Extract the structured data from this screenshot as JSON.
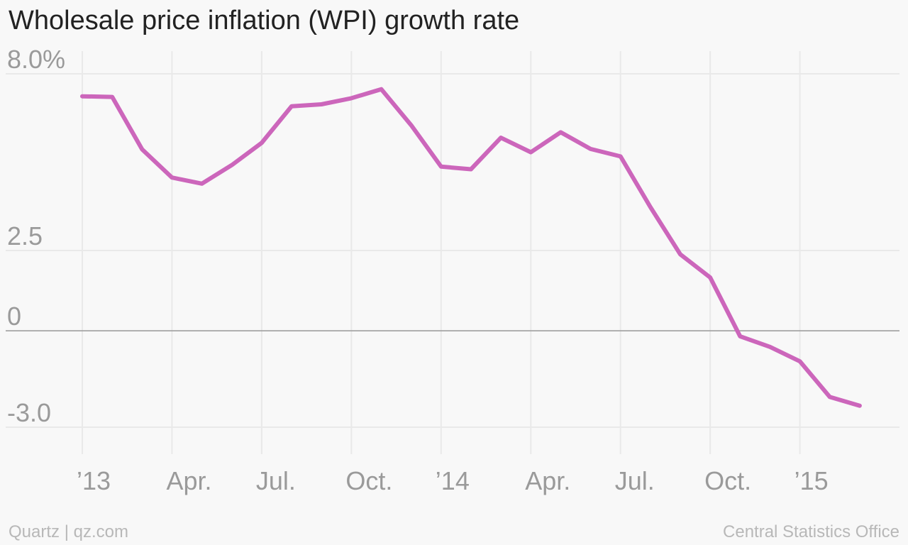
{
  "title": "Wholesale price inflation (WPI) growth rate",
  "footer": {
    "left": "Quartz | qz.com",
    "right": "Central Statistics Office"
  },
  "colors": {
    "line": "#cc66bb",
    "grid": "#e9e9e9",
    "zero_line": "#999999",
    "background": "#f8f8f8"
  },
  "chart_data": {
    "type": "line",
    "title": "Wholesale price inflation (WPI) growth rate",
    "xlabel": "",
    "ylabel": "",
    "ylim": [
      -3.0,
      8.0
    ],
    "grid": true,
    "y_ticks": [
      {
        "value": 8.0,
        "label": "8.0%"
      },
      {
        "value": 2.5,
        "label": "2.5"
      },
      {
        "value": 0,
        "label": "0"
      },
      {
        "value": -3.0,
        "label": "-3.0"
      }
    ],
    "x_ticks": [
      {
        "month": "2013-01",
        "label": "’13"
      },
      {
        "month": "2013-04",
        "label": "Apr."
      },
      {
        "month": "2013-07",
        "label": "Jul."
      },
      {
        "month": "2013-10",
        "label": "Oct."
      },
      {
        "month": "2014-01",
        "label": "’14"
      },
      {
        "month": "2014-04",
        "label": "Apr."
      },
      {
        "month": "2014-07",
        "label": "Jul."
      },
      {
        "month": "2014-10",
        "label": "Oct."
      },
      {
        "month": "2015-01",
        "label": "’15"
      }
    ],
    "x": [
      "2013-01",
      "2013-02",
      "2013-03",
      "2013-04",
      "2013-05",
      "2013-06",
      "2013-07",
      "2013-08",
      "2013-09",
      "2013-10",
      "2013-11",
      "2013-12",
      "2014-01",
      "2014-02",
      "2014-03",
      "2014-04",
      "2014-05",
      "2014-06",
      "2014-07",
      "2014-08",
      "2014-09",
      "2014-10",
      "2014-11",
      "2014-12",
      "2015-01",
      "2015-02",
      "2015-03"
    ],
    "series": [
      {
        "values": [
          7.3,
          7.28,
          5.65,
          4.77,
          4.58,
          5.16,
          5.85,
          6.99,
          7.05,
          7.24,
          7.52,
          6.4,
          5.11,
          5.03,
          6.01,
          5.56,
          6.18,
          5.66,
          5.43,
          3.85,
          2.38,
          1.66,
          -0.17,
          -0.5,
          -0.95,
          -2.06,
          -2.33
        ]
      }
    ]
  }
}
